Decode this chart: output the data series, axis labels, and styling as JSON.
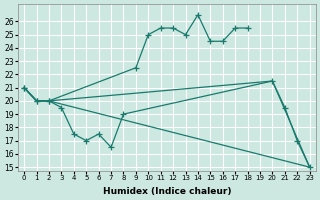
{
  "bg_color": "#cce8e0",
  "line_color": "#1a7a6e",
  "grid_color": "#ffffff",
  "xlabel": "Humidex (Indice chaleur)",
  "ylim": [
    15,
    27
  ],
  "xlim": [
    -0.5,
    23.5
  ],
  "yticks": [
    15,
    16,
    17,
    18,
    19,
    20,
    21,
    22,
    23,
    24,
    25,
    26
  ],
  "xticks": [
    0,
    1,
    2,
    3,
    4,
    5,
    6,
    7,
    8,
    9,
    10,
    11,
    12,
    13,
    14,
    15,
    16,
    17,
    18,
    19,
    20,
    21,
    22,
    23
  ],
  "line1_x": [
    0,
    1,
    2,
    3,
    4,
    5,
    6,
    7,
    8,
    20,
    21,
    22,
    23
  ],
  "line1_y": [
    21.0,
    20.0,
    20.0,
    19.5,
    17.5,
    17.0,
    17.5,
    16.5,
    19.0,
    21.5,
    19.5,
    17.0,
    15.0
  ],
  "line2_x": [
    0,
    1,
    2,
    9,
    10,
    11,
    12,
    13,
    14,
    15,
    16,
    17,
    18
  ],
  "line2_y": [
    21.0,
    20.0,
    20.0,
    22.5,
    25.0,
    25.5,
    25.5,
    25.0,
    26.5,
    24.5,
    24.5,
    25.5,
    25.5
  ],
  "line3_x": [
    0,
    1,
    2,
    20,
    23
  ],
  "line3_y": [
    21.0,
    20.0,
    20.0,
    21.5,
    15.0
  ],
  "line4_x": [
    0,
    1,
    2,
    23
  ],
  "line4_y": [
    21.0,
    20.0,
    20.0,
    15.0
  ]
}
